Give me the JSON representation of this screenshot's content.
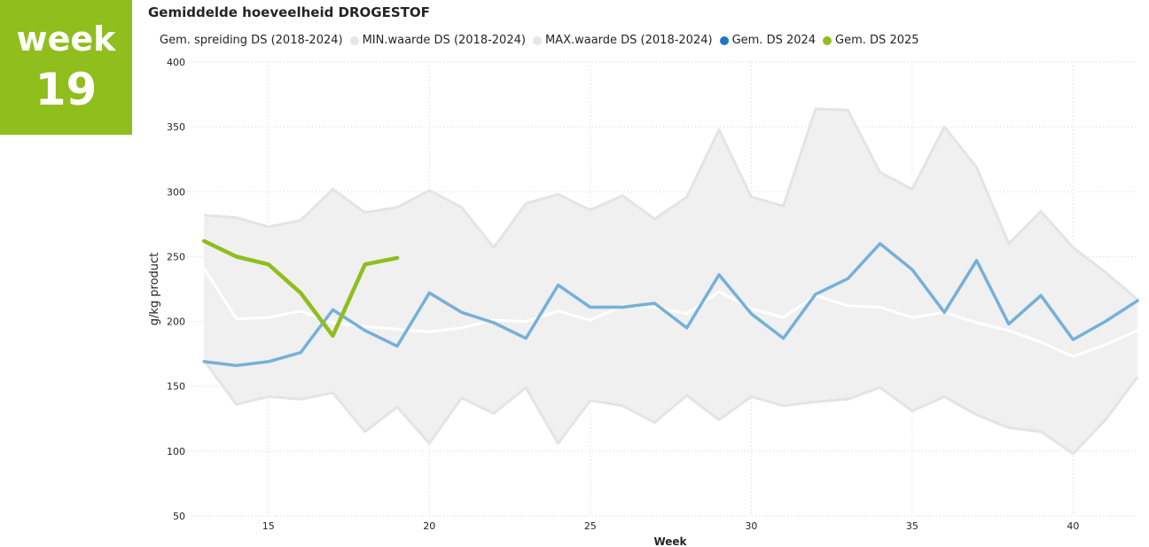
{
  "badge": {
    "word": "week",
    "number": "19"
  },
  "colors": {
    "badge": "#8fbe1d",
    "band": "#f0f0f0",
    "band_edge": "#e4e4e4",
    "mean": "#ffffff",
    "ds2024_line": "#76b0d8",
    "ds2024_legend": "#1f77c8",
    "ds2025": "#8fbe1d",
    "grid": "#d6d6d6",
    "legend_grey": "#e6e6e6"
  },
  "chart_data": {
    "type": "area",
    "title": "Gemiddelde hoeveelheid DROGESTOF",
    "xlabel": "Week",
    "ylabel": "g/kg product",
    "xlim": [
      12.5,
      42
    ],
    "ylim": [
      50,
      400
    ],
    "x_ticks": [
      15,
      20,
      25,
      30,
      35,
      40
    ],
    "y_ticks": [
      50,
      100,
      150,
      200,
      250,
      300,
      350,
      400
    ],
    "grid": true,
    "legend_position": "top-left",
    "legend": [
      {
        "label": "Gem. spreiding DS (2018-2024)",
        "marker": "none"
      },
      {
        "label": "MIN.waarde DS (2018-2024)",
        "marker": "legend_grey"
      },
      {
        "label": "MAX.waarde DS (2018-2024)",
        "marker": "legend_grey"
      },
      {
        "label": "Gem. DS 2024",
        "marker": "ds2024_legend"
      },
      {
        "label": "Gem. DS 2025",
        "marker": "ds2025"
      }
    ],
    "x": [
      13,
      14,
      15,
      16,
      17,
      18,
      19,
      20,
      21,
      22,
      23,
      24,
      25,
      26,
      27,
      28,
      29,
      30,
      31,
      32,
      33,
      34,
      35,
      36,
      37,
      38,
      39,
      40,
      41,
      42
    ],
    "series": [
      {
        "name": "MAX.waarde DS (2018-2024)",
        "role": "band_upper",
        "values": [
          282,
          280,
          273,
          278,
          302,
          284,
          288,
          301,
          288,
          257,
          291,
          298,
          286,
          297,
          279,
          296,
          348,
          296,
          289,
          364,
          363,
          315,
          302,
          350,
          319,
          260,
          285,
          257,
          238,
          217
        ]
      },
      {
        "name": "MIN.waarde DS (2018-2024)",
        "role": "band_lower",
        "values": [
          170,
          136,
          142,
          140,
          145,
          115,
          134,
          106,
          141,
          129,
          149,
          106,
          139,
          135,
          122,
          143,
          124,
          142,
          135,
          138,
          140,
          149,
          131,
          142,
          128,
          118,
          115,
          98,
          124,
          157
        ]
      },
      {
        "name": "Gem. spreiding DS (2018-2024)",
        "role": "mean",
        "values": [
          241,
          202,
          203,
          208,
          199,
          196,
          194,
          192,
          195,
          201,
          200,
          208,
          201,
          212,
          211,
          206,
          223,
          210,
          203,
          220,
          212,
          211,
          203,
          207,
          199,
          193,
          184,
          173,
          182,
          193
        ]
      },
      {
        "name": "Gem. DS 2024",
        "role": "line",
        "values": [
          169,
          166,
          169,
          176,
          209,
          193,
          181,
          222,
          207,
          199,
          187,
          228,
          211,
          211,
          214,
          195,
          236,
          206,
          187,
          221,
          233,
          260,
          240,
          207,
          247,
          198,
          220,
          186,
          200,
          216
        ]
      },
      {
        "name": "Gem. DS 2025",
        "role": "line",
        "x": [
          13,
          14,
          15,
          16,
          17,
          18,
          19
        ],
        "values": [
          262,
          250,
          244,
          222,
          189,
          244,
          249
        ]
      }
    ]
  }
}
